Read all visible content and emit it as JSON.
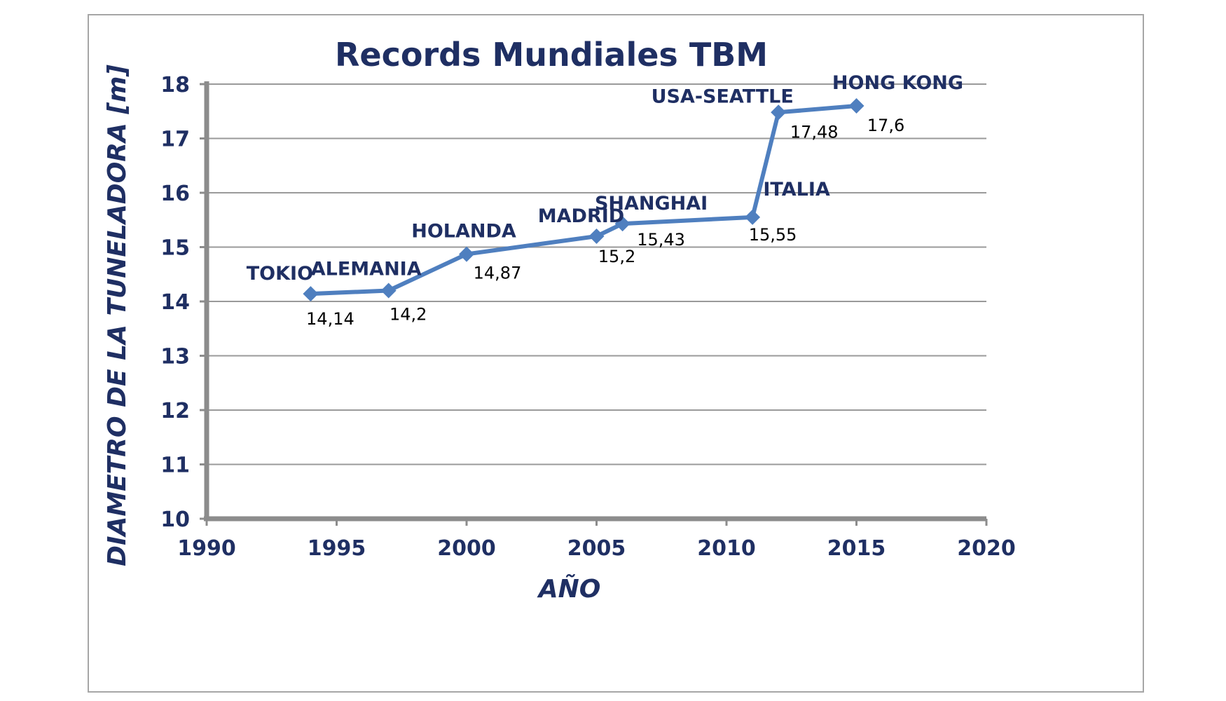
{
  "chart_data": {
    "type": "line",
    "title": "Records Mundiales TBM",
    "xlabel": "AÑO",
    "ylabel": "DIAMETRO DE LA TUNELADORA [m]",
    "xlim": [
      1990,
      2020
    ],
    "ylim": [
      10,
      18
    ],
    "xticks": [
      1990,
      1995,
      2000,
      2005,
      2010,
      2015,
      2020
    ],
    "yticks": [
      10,
      11,
      12,
      13,
      14,
      15,
      16,
      17,
      18
    ],
    "grid": true,
    "legend": "none",
    "series_color": "#4f7fbf",
    "text_color": "#1f2f63",
    "points": [
      {
        "x": 1994,
        "y": 14.14,
        "label": "TOKIO",
        "value_label": "14,14"
      },
      {
        "x": 1997,
        "y": 14.2,
        "label": "ALEMANIA",
        "value_label": "14,2"
      },
      {
        "x": 2000,
        "y": 14.87,
        "label": "HOLANDA",
        "value_label": "14,87"
      },
      {
        "x": 2005,
        "y": 15.2,
        "label": "MADRID",
        "value_label": "15,2"
      },
      {
        "x": 2006,
        "y": 15.43,
        "label": "SHANGHAI",
        "value_label": "15,43"
      },
      {
        "x": 2011,
        "y": 15.55,
        "label": "ITALIA",
        "value_label": "15,55"
      },
      {
        "x": 2012,
        "y": 17.48,
        "label": "USA-SEATTLE",
        "value_label": "17,48"
      },
      {
        "x": 2015,
        "y": 17.6,
        "label": "HONG KONG",
        "value_label": "17,6"
      }
    ]
  }
}
